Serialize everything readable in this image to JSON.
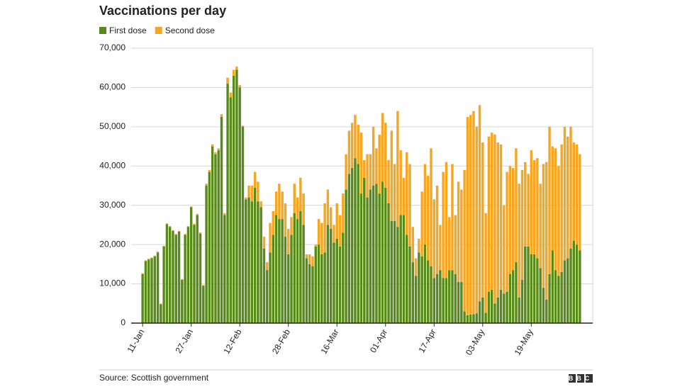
{
  "chart_data": {
    "type": "stacked_bar",
    "title": "Vaccinations per day",
    "source": "Source: Scottish government",
    "logo": "BBC",
    "categories": [
      "11-Jan",
      null,
      null,
      null,
      null,
      null,
      null,
      null,
      null,
      null,
      null,
      null,
      null,
      null,
      null,
      null,
      "27-Jan",
      null,
      null,
      null,
      null,
      null,
      null,
      null,
      null,
      null,
      null,
      null,
      null,
      null,
      null,
      null,
      "12-Feb",
      null,
      null,
      null,
      null,
      null,
      null,
      null,
      null,
      null,
      null,
      null,
      null,
      null,
      null,
      null,
      "28-Feb",
      null,
      null,
      null,
      null,
      null,
      null,
      null,
      null,
      null,
      null,
      null,
      null,
      null,
      null,
      null,
      "16-Mar",
      null,
      null,
      null,
      null,
      null,
      null,
      null,
      null,
      null,
      null,
      null,
      null,
      null,
      null,
      null,
      "01-Apr",
      null,
      null,
      null,
      null,
      null,
      null,
      null,
      null,
      null,
      null,
      null,
      null,
      null,
      null,
      null,
      "17-Apr",
      null,
      null,
      null,
      null,
      null,
      null,
      null,
      null,
      null,
      null,
      null,
      null,
      null,
      null,
      null,
      "03-May",
      null,
      null,
      null,
      null,
      null,
      null,
      null,
      null,
      null,
      null,
      null,
      null,
      null,
      null,
      null,
      "19-May",
      null,
      null,
      null,
      null,
      null,
      null,
      null,
      null,
      null,
      null,
      null,
      null,
      null,
      null,
      null,
      null
    ],
    "series": [
      {
        "name": "First dose",
        "color": "#588a1a",
        "values": [
          12500,
          15800,
          16200,
          16500,
          17000,
          18000,
          4800,
          19500,
          25200,
          24500,
          23500,
          22500,
          23300,
          11000,
          22500,
          24500,
          29500,
          25000,
          27500,
          22800,
          9500,
          35000,
          38500,
          45000,
          43000,
          44000,
          52500,
          27500,
          61000,
          57500,
          63000,
          64500,
          60000,
          50000,
          31500,
          32000,
          31000,
          34500,
          31000,
          29500,
          19000,
          13500,
          18000,
          22500,
          27500,
          26500,
          26500,
          22000,
          17500,
          22500,
          28000,
          26500,
          28500,
          25000,
          16500,
          15000,
          14500,
          19500,
          20000,
          17500,
          18000,
          25000,
          24000,
          20500,
          21500,
          19500,
          23000,
          34000,
          38000,
          39500,
          42000,
          40500,
          33000,
          37000,
          32000,
          34000,
          35000,
          35500,
          33000,
          36000,
          34500,
          30500,
          26000,
          26000,
          24500,
          27500,
          27500,
          22500,
          19500,
          15500,
          12000,
          18000,
          17000,
          20000,
          16000,
          14500,
          11500,
          12500,
          13500,
          11500,
          11500,
          13500,
          13500,
          12500,
          10500,
          10500,
          3000,
          2000,
          2200,
          2300,
          2500,
          5500,
          6500,
          2600,
          8000,
          8500,
          5000,
          6500,
          8500,
          7500,
          8000,
          12500,
          13500,
          15500,
          6500,
          11000,
          19500,
          19500,
          17500,
          17500,
          16500,
          14000,
          9000,
          6000,
          12500,
          18500,
          13500,
          12000,
          13000,
          16000,
          16500,
          19000,
          21000,
          20000,
          18500
        ]
      },
      {
        "name": "Second dose",
        "color": "#f5a623",
        "values": [
          200,
          200,
          200,
          200,
          200,
          200,
          200,
          200,
          200,
          200,
          200,
          200,
          200,
          200,
          200,
          200,
          200,
          300,
          300,
          300,
          200,
          500,
          500,
          500,
          500,
          500,
          700,
          500,
          1500,
          1200,
          1500,
          800,
          600,
          300,
          500,
          3000,
          4000,
          4000,
          5000,
          1500,
          3000,
          2000,
          7500,
          6000,
          6000,
          9000,
          7000,
          8500,
          6500,
          4500,
          7500,
          5500,
          8500,
          8000,
          1000,
          2500,
          2500,
          500,
          6500,
          8000,
          12500,
          9000,
          5500,
          4500,
          9000,
          8000,
          10000,
          9000,
          11000,
          11500,
          11000,
          10000,
          15500,
          4500,
          11000,
          9000,
          15000,
          9000,
          15000,
          17500,
          16500,
          11000,
          23000,
          14500,
          29500,
          16500,
          9500,
          21000,
          21000,
          9000,
          4500,
          3500,
          16500,
          20500,
          21500,
          30000,
          20000,
          22500,
          11500,
          27000,
          29500,
          13500,
          27000,
          15000,
          25500,
          23500,
          36000,
          50500,
          50800,
          51700,
          47500,
          50000,
          39500,
          25400,
          39500,
          40000,
          43000,
          39500,
          37000,
          22500,
          30500,
          27500,
          26000,
          29000,
          29000,
          28000,
          21500,
          18500,
          26500,
          24000,
          25500,
          21500,
          31500,
          35000,
          37500,
          26500,
          31000,
          28000,
          32500,
          34000,
          31000,
          31000,
          25000,
          25500,
          24500
        ]
      }
    ],
    "ylim": [
      0,
      70000
    ],
    "yticks": [
      0,
      {
        "value": 10000,
        "label": "10,000"
      },
      {
        "value": 20000,
        "label": "20,000"
      },
      {
        "value": 30000,
        "label": "30,000"
      },
      {
        "value": 40000,
        "label": "40,000"
      },
      {
        "value": 50000,
        "label": "50,000"
      },
      {
        "value": 60000,
        "label": "60,000"
      },
      {
        "value": 70000,
        "label": "70,000"
      }
    ],
    "grid": true
  }
}
